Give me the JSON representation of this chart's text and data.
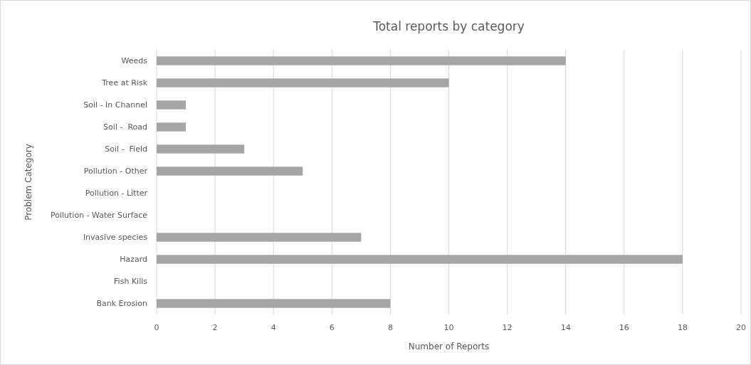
{
  "chart_data": {
    "type": "bar",
    "orientation": "horizontal",
    "title": "Total reports by category",
    "xlabel": "Number of Reports",
    "ylabel": "Problem Category",
    "categories": [
      "Weeds",
      "Tree at Risk",
      "Soil - In Channel",
      "Soil -  Road",
      "Soil -  Field",
      "Pollution - Other",
      "Pollution - Litter",
      "Pollution - Water Surface",
      "Invasive species",
      "Hazard",
      "Fish Kills",
      "Bank Erosion"
    ],
    "values": [
      14,
      10,
      1,
      1,
      3,
      5,
      0,
      0,
      7,
      18,
      0,
      8
    ],
    "color": "#a5a5a5",
    "xlim": [
      0,
      20
    ],
    "xticks": [
      0,
      2,
      4,
      6,
      8,
      10,
      12,
      14,
      16,
      18,
      20
    ],
    "grid": "x"
  }
}
